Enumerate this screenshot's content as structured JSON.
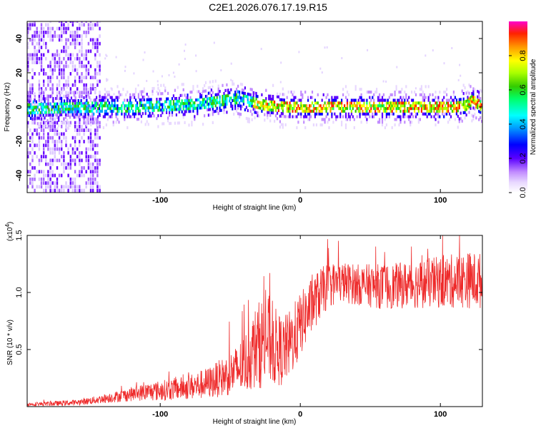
{
  "page_title": "C2E1.2026.076.17.19.R15",
  "chart_data": [
    {
      "type": "heatmap",
      "title": "C2E1.2026.076.17.19.R15",
      "xlabel": "Height of straight line (km)",
      "ylabel": "Frequency (Hz)",
      "xlim": [
        -195,
        130
      ],
      "ylim": [
        -50,
        50
      ],
      "xticks": [
        -100,
        0,
        100
      ],
      "yticks": [
        -40,
        -20,
        0,
        20,
        40
      ],
      "colorbar": {
        "label": "Normalized spectral amplitude",
        "range": [
          0.0,
          1.0
        ],
        "ticks": [
          0.0,
          0.2,
          0.4,
          0.6,
          0.8
        ],
        "colormap": [
          "#ffffff",
          "#e8d8ff",
          "#c28cff",
          "#8a2be2",
          "#5a00ff",
          "#0000ff",
          "#00a0ff",
          "#00ffff",
          "#00ff66",
          "#33cc00",
          "#aaff00",
          "#ffff00",
          "#ff9900",
          "#ff2200",
          "#ff00cc"
        ]
      },
      "ridge": {
        "description_points_x": [
          -195,
          -150,
          -120,
          -90,
          -70,
          -55,
          -45,
          -35,
          -25,
          -10,
          0,
          20,
          40,
          60,
          80,
          100,
          110,
          118,
          122,
          130
        ],
        "frequency_hz": [
          -1,
          0,
          0,
          1,
          2,
          4,
          5,
          3,
          1,
          0,
          0,
          0,
          0,
          0,
          0,
          0,
          0,
          1,
          4,
          0
        ]
      },
      "noise_region_x": [
        -195,
        -143
      ]
    },
    {
      "type": "line",
      "xlabel": "Height of straight line (km)",
      "ylabel": "SNR (10 * v/v)",
      "multiplier_label": "(x10",
      "multiplier_exp": "4",
      "xlim": [
        -195,
        130
      ],
      "ylim": [
        0,
        15000
      ],
      "xticks": [
        -100,
        0,
        100
      ],
      "yticks": [
        0.5,
        1.0,
        1.5
      ],
      "ytick_labels": [
        "0.5",
        "1.0",
        "1.5"
      ],
      "series": [
        {
          "name": "SNR",
          "color": "#ee2a2a",
          "x": [
            -195,
            -180,
            -160,
            -145,
            -130,
            -115,
            -100,
            -85,
            -75,
            -65,
            -55,
            -45,
            -38,
            -33,
            -28,
            -23,
            -18,
            -13,
            -8,
            -3,
            0,
            5,
            10,
            15,
            20,
            25,
            30,
            40,
            50,
            60,
            70,
            80,
            90,
            100,
            110,
            120,
            130
          ],
          "y": [
            200,
            250,
            350,
            600,
            900,
            1200,
            1400,
            1600,
            1800,
            2100,
            2600,
            3200,
            4000,
            5000,
            5600,
            6000,
            5200,
            4800,
            5400,
            6400,
            7200,
            8200,
            9200,
            10000,
            10600,
            10800,
            10900,
            10700,
            10600,
            10500,
            10600,
            10700,
            10800,
            10900,
            11000,
            11100,
            11000
          ],
          "spread": [
            150,
            200,
            250,
            350,
            500,
            700,
            900,
            1000,
            1200,
            1400,
            1700,
            2200,
            2800,
            3500,
            4000,
            4000,
            3500,
            3000,
            3000,
            3000,
            2800,
            2600,
            2400,
            2200,
            2000,
            1900,
            1800,
            1800,
            1900,
            2000,
            2000,
            2100,
            2200,
            2300,
            2400,
            2500,
            2500
          ]
        }
      ]
    }
  ]
}
